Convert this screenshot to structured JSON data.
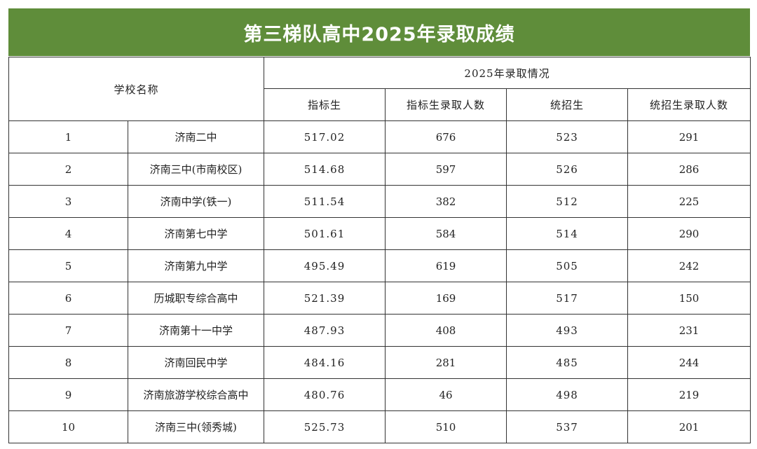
{
  "title": "第三梯队高中2025年录取成绩",
  "header": {
    "school_name": "学校名称",
    "group_label": "2025年录取情况",
    "columns": [
      "指标生",
      "指标生录取人数",
      "统招生",
      "统招生录取人数"
    ]
  },
  "rows": [
    {
      "no": "1",
      "school": "济南二中",
      "zhibiao": "517.02",
      "zhibiao_count": "676",
      "tongzhao": "523",
      "tongzhao_count": "291"
    },
    {
      "no": "2",
      "school": "济南三中(市南校区)",
      "zhibiao": "514.68",
      "zhibiao_count": "597",
      "tongzhao": "526",
      "tongzhao_count": "286"
    },
    {
      "no": "3",
      "school": "济南中学(铁一)",
      "zhibiao": "511.54",
      "zhibiao_count": "382",
      "tongzhao": "512",
      "tongzhao_count": "225"
    },
    {
      "no": "4",
      "school": "济南第七中学",
      "zhibiao": "501.61",
      "zhibiao_count": "584",
      "tongzhao": "514",
      "tongzhao_count": "290"
    },
    {
      "no": "5",
      "school": "济南第九中学",
      "zhibiao": "495.49",
      "zhibiao_count": "619",
      "tongzhao": "505",
      "tongzhao_count": "242"
    },
    {
      "no": "6",
      "school": "历城职专综合高中",
      "zhibiao": "521.39",
      "zhibiao_count": "169",
      "tongzhao": "517",
      "tongzhao_count": "150"
    },
    {
      "no": "7",
      "school": "济南第十一中学",
      "zhibiao": "487.93",
      "zhibiao_count": "408",
      "tongzhao": "493",
      "tongzhao_count": "231"
    },
    {
      "no": "8",
      "school": "济南回民中学",
      "zhibiao": "484.16",
      "zhibiao_count": "281",
      "tongzhao": "485",
      "tongzhao_count": "244"
    },
    {
      "no": "9",
      "school": "济南旅游学校综合高中",
      "zhibiao": "480.76",
      "zhibiao_count": "46",
      "tongzhao": "498",
      "tongzhao_count": "219"
    },
    {
      "no": "10",
      "school": "济南三中(领秀城)",
      "zhibiao": "525.73",
      "zhibiao_count": "510",
      "tongzhao": "537",
      "tongzhao_count": "201"
    }
  ],
  "colors": {
    "title_bg": "#5f8d3a",
    "title_fg": "#ffffff",
    "border": "#333333"
  }
}
